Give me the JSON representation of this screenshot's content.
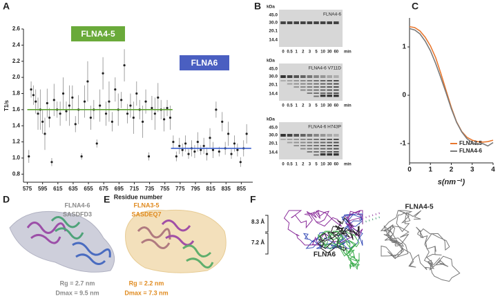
{
  "panel_labels": [
    "A",
    "B",
    "C",
    "D",
    "E",
    "F"
  ],
  "chart_data": [
    {
      "type": "scatter",
      "xlabel": "Residue number",
      "ylabel": "T1/s",
      "xlim": [
        570,
        870
      ],
      "ylim": [
        0.7,
        2.6
      ],
      "xticks": [
        575,
        595,
        615,
        635,
        655,
        675,
        695,
        715,
        735,
        755,
        775,
        795,
        815,
        835,
        855
      ],
      "yticks": [
        0.8,
        {
          "value": 1,
          "label": "1.0"
        },
        1.2,
        1.4,
        1.6,
        1.8,
        {
          "value": 2,
          "label": "2.0"
        },
        2.2,
        2.4,
        2.6
      ],
      "color": "#222222",
      "error_color": "#8a8a8a",
      "x": [
        577,
        580,
        583,
        586,
        589,
        592,
        595,
        598,
        601,
        604,
        607,
        610,
        614,
        618,
        622,
        626,
        630,
        634,
        638,
        642,
        646,
        650,
        654,
        658,
        662,
        666,
        670,
        674,
        678,
        682,
        686,
        690,
        694,
        698,
        702,
        706,
        710,
        714,
        718,
        722,
        726,
        730,
        734,
        738,
        742,
        746,
        750,
        754,
        758,
        762,
        766,
        770,
        774,
        778,
        782,
        786,
        790,
        794,
        798,
        802,
        806,
        810,
        814,
        818,
        822,
        826,
        830,
        834,
        838,
        842,
        846,
        850,
        854,
        858,
        862
      ],
      "values": [
        1.02,
        1.85,
        1.78,
        1.7,
        1.55,
        1.6,
        1.45,
        1.3,
        1.68,
        1.5,
        0.95,
        1.72,
        1.6,
        1.55,
        1.8,
        1.58,
        1.65,
        1.75,
        1.42,
        1.6,
        1.02,
        1.7,
        1.95,
        1.5,
        1.6,
        1.18,
        1.65,
        2.05,
        1.55,
        1.7,
        1.45,
        1.85,
        1.6,
        1.72,
        2.15,
        1.55,
        1.65,
        1.5,
        1.8,
        1.6,
        1.45,
        1.7,
        1.02,
        1.62,
        1.55,
        1.75,
        1.6,
        1.48,
        1.62,
        1.5,
        1.2,
        1.02,
        1.15,
        1.1,
        1.18,
        1.05,
        1.12,
        1.08,
        1.2,
        1.1,
        1.15,
        1.05,
        1.25,
        1.1,
        1.6,
        1.08,
        1.45,
        1.12,
        1.3,
        1.05,
        1.18,
        1.1,
        0.95,
        1.12,
        1.3
      ],
      "errors": [
        0.08,
        0.1,
        0.12,
        0.15,
        0.2,
        0.25,
        0.15,
        0.2,
        0.18,
        0.12,
        0.05,
        0.2,
        0.1,
        0.15,
        0.2,
        0.12,
        0.25,
        0.15,
        0.1,
        0.18,
        0.04,
        0.2,
        0.25,
        0.15,
        0.12,
        0.05,
        0.2,
        0.2,
        0.15,
        0.25,
        0.12,
        0.15,
        0.2,
        0.1,
        0.2,
        0.12,
        0.15,
        0.2,
        0.15,
        0.12,
        0.2,
        0.15,
        0.05,
        0.15,
        0.2,
        0.18,
        0.12,
        0.15,
        0.1,
        0.15,
        0.08,
        0.06,
        0.1,
        0.08,
        0.1,
        0.06,
        0.1,
        0.08,
        0.12,
        0.06,
        0.1,
        0.08,
        0.12,
        0.1,
        0.1,
        0.06,
        0.12,
        0.08,
        0.15,
        0.06,
        0.1,
        0.08,
        0.06,
        0.1,
        0.12
      ],
      "fit_lines": [
        {
          "value": 1.6,
          "range": [
            575,
            765
          ],
          "color": "#5aa02c"
        },
        {
          "value": 1.12,
          "range": [
            763,
            868
          ],
          "color": "#3a5fcd"
        }
      ],
      "annotations": [
        {
          "text": "FLNA4-5",
          "color": "#6aaa3a"
        },
        {
          "text": "FLNA6",
          "color": "#4a5fc1"
        }
      ]
    },
    {
      "type": "line",
      "xlabel": "s(nm⁻¹)",
      "xlim": [
        0,
        4
      ],
      "ylim": [
        -1.4,
        1.6
      ],
      "xticks": [
        0,
        1,
        2,
        3,
        4
      ],
      "yticks": [
        -1,
        0,
        1
      ],
      "x": [
        0,
        0.25,
        0.5,
        0.75,
        1,
        1.25,
        1.5,
        1.75,
        2,
        2.25,
        2.5,
        2.75,
        3,
        3.25,
        3.5,
        3.75,
        4
      ],
      "series": [
        {
          "name": "FLNA3-5",
          "color": "#e8772e",
          "values": [
            1.42,
            1.4,
            1.33,
            1.2,
            1.02,
            0.78,
            0.45,
            0.1,
            -0.25,
            -0.55,
            -0.75,
            -0.87,
            -0.93,
            -0.96,
            -0.97,
            -0.96,
            -0.93
          ]
        },
        {
          "name": "FLNA4-6",
          "color": "#7a7a7a",
          "values": [
            1.38,
            1.35,
            1.27,
            1.12,
            0.92,
            0.66,
            0.36,
            0.05,
            -0.28,
            -0.56,
            -0.76,
            -0.9,
            -0.98,
            -1.02,
            -1.0,
            -1.05,
            -0.98
          ]
        }
      ]
    }
  ],
  "gels": [
    {
      "title": "FLNA4-6",
      "kda_label": "kDa",
      "markers": [
        "45.0",
        "30.0",
        "20.1",
        "14.4"
      ],
      "lanes": [
        "0",
        "0.5",
        "1",
        "2",
        "3",
        "5",
        "10",
        "30",
        "60"
      ],
      "unit": "min"
    },
    {
      "title": "FLNA4-6 V711D",
      "kda_label": "kDa",
      "markers": [
        "45.0",
        "30.0",
        "20.1",
        "14.4"
      ],
      "lanes": [
        "0",
        "0.5",
        "1",
        "2",
        "3",
        "5",
        "10",
        "30",
        "60"
      ],
      "unit": "min"
    },
    {
      "title": "FLNA4-6 H743P",
      "kda_label": "kDa",
      "markers": [
        "45.0",
        "30.0",
        "20.1",
        "14.4"
      ],
      "lanes": [
        "0",
        "0.5",
        "1",
        "2",
        "3",
        "5",
        "10",
        "30",
        "60"
      ],
      "unit": "min"
    }
  ],
  "structures": [
    {
      "title": "FLNA4-6",
      "accession": "SASDFD3",
      "rg": "Rg = 2.7 nm",
      "dmax": "Dmax = 9.5 nm"
    },
    {
      "title": "FLNA3-5",
      "accession": "SASDEQ7",
      "rg": "Rg = 2.2 nm",
      "dmax": "Dmax = 7.3 nm"
    }
  ],
  "superposition": {
    "labels": [
      "FLNA6",
      "FLNA4-5"
    ],
    "distances": [
      "8.3 Å",
      "7.2 Å"
    ]
  }
}
